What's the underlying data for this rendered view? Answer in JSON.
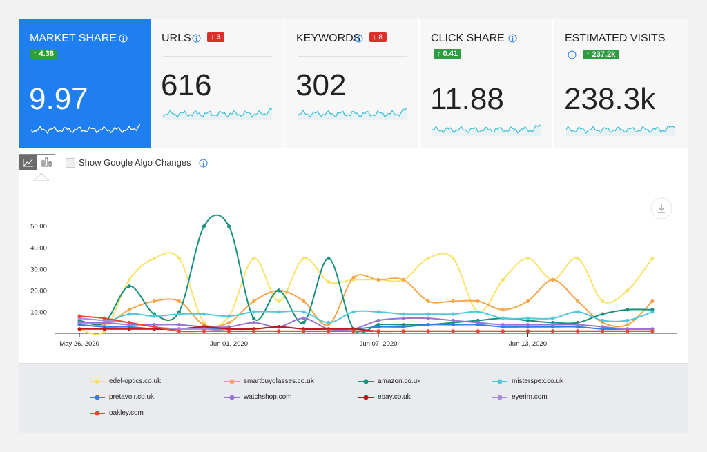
{
  "cards": [
    {
      "title": "MARKET SHARE",
      "badge": "↑ 4.38",
      "value": "9.97"
    },
    {
      "title": "URLS",
      "badge": "↓ 3",
      "value": "616"
    },
    {
      "title": "KEYWORDS",
      "badge": "↓ 8",
      "value": "302"
    },
    {
      "title": "CLICK SHARE",
      "badge": "↑ 0.41",
      "value": "11.88"
    },
    {
      "title": "ESTIMATED VISITS",
      "badge": "↑ 237.2k",
      "value": "238.3k"
    }
  ],
  "toolbar": {
    "checkbox_label": "Show Google Algo Changes"
  },
  "chart_data": {
    "type": "line",
    "x": [
      "2020-05-26",
      "2020-05-27",
      "2020-05-28",
      "2020-05-29",
      "2020-05-30",
      "2020-05-31",
      "2020-06-01",
      "2020-06-02",
      "2020-06-03",
      "2020-06-04",
      "2020-06-05",
      "2020-06-06",
      "2020-06-07",
      "2020-06-08",
      "2020-06-09",
      "2020-06-10",
      "2020-06-11",
      "2020-06-12",
      "2020-06-13",
      "2020-06-14",
      "2020-06-15",
      "2020-06-16",
      "2020-06-17",
      "2020-06-18"
    ],
    "xlim": [
      "2020-05-25",
      "2020-06-19"
    ],
    "xticks": [
      {
        "value": "2020-05-26",
        "label": "May 26, 2020"
      },
      {
        "value": "2020-06-01",
        "label": "Jun 01, 2020"
      },
      {
        "value": "2020-06-07",
        "label": "Jun 07, 2020"
      },
      {
        "value": "2020-06-13",
        "label": "Jun 13, 2020"
      }
    ],
    "ylim": [
      0,
      57
    ],
    "yticks": [
      {
        "value": 10,
        "label": "10.00"
      },
      {
        "value": 20,
        "label": "20.00"
      },
      {
        "value": 30,
        "label": "30.00"
      },
      {
        "value": 40,
        "label": "40.00"
      },
      {
        "value": 50,
        "label": "50.00"
      }
    ],
    "series": [
      {
        "name": "edel-optics.co.uk",
        "color": "#f8e36a",
        "values": [
          2,
          1,
          25,
          35,
          35,
          5,
          8,
          35,
          15,
          35,
          24,
          25,
          25,
          25,
          35,
          35,
          10,
          25,
          35,
          25,
          35,
          15,
          20,
          35
        ]
      },
      {
        "name": "smartbuyglasses.co.uk",
        "color": "#f5a54a",
        "values": [
          6,
          4,
          11,
          15,
          15,
          4,
          5,
          15,
          20,
          15,
          4,
          26,
          25,
          25,
          15,
          15,
          15,
          11,
          15,
          25,
          15,
          5,
          4,
          15
        ]
      },
      {
        "name": "amazon.co.uk",
        "color": "#16917b",
        "values": [
          6,
          5,
          22,
          9,
          10,
          50,
          50,
          7,
          20,
          5,
          35,
          2,
          4,
          4,
          4,
          5,
          6,
          7,
          6,
          5,
          5,
          9,
          11,
          11
        ]
      },
      {
        "name": "misterspex.co.uk",
        "color": "#4fc9d9",
        "values": [
          5,
          5,
          9,
          8,
          9,
          9,
          8,
          10,
          10,
          10,
          5,
          10,
          10,
          9,
          9,
          9,
          10,
          7,
          7,
          7,
          10,
          6,
          6,
          10
        ]
      },
      {
        "name": "pretavoir.co.uk",
        "color": "#2f80e0",
        "values": [
          4,
          3,
          3,
          2,
          2,
          2,
          2,
          2,
          3,
          2,
          2,
          2,
          3,
          3,
          4,
          4,
          4,
          3,
          3,
          3,
          3,
          2,
          2,
          2
        ]
      },
      {
        "name": "watchshop.com",
        "color": "#9874cf",
        "values": [
          5,
          5,
          4,
          4,
          4,
          3,
          3,
          5,
          3,
          7,
          2,
          2,
          6,
          7,
          7,
          6,
          5,
          4,
          4,
          4,
          4,
          3,
          2,
          2
        ]
      },
      {
        "name": "ebay.co.uk",
        "color": "#c1161a",
        "values": [
          2,
          2,
          2,
          2,
          2,
          3,
          2,
          2,
          3,
          2,
          2,
          2,
          1,
          1,
          1,
          1,
          1,
          1,
          1,
          1,
          1,
          1,
          1,
          1
        ]
      },
      {
        "name": "eyerim.com",
        "color": "#aa8bd8",
        "values": [
          7,
          6,
          5,
          3,
          2,
          2,
          1,
          1,
          1,
          1,
          1,
          1,
          1,
          1,
          1,
          1,
          1,
          1,
          1,
          1,
          1,
          1,
          1,
          1
        ]
      },
      {
        "name": "oakley.com",
        "color": "#e84a2f",
        "values": [
          8,
          7,
          5,
          3,
          1,
          1,
          1,
          1,
          1,
          1,
          1,
          1,
          1,
          1,
          1,
          1,
          1,
          1,
          1,
          1,
          1,
          1,
          1,
          1
        ]
      }
    ]
  }
}
